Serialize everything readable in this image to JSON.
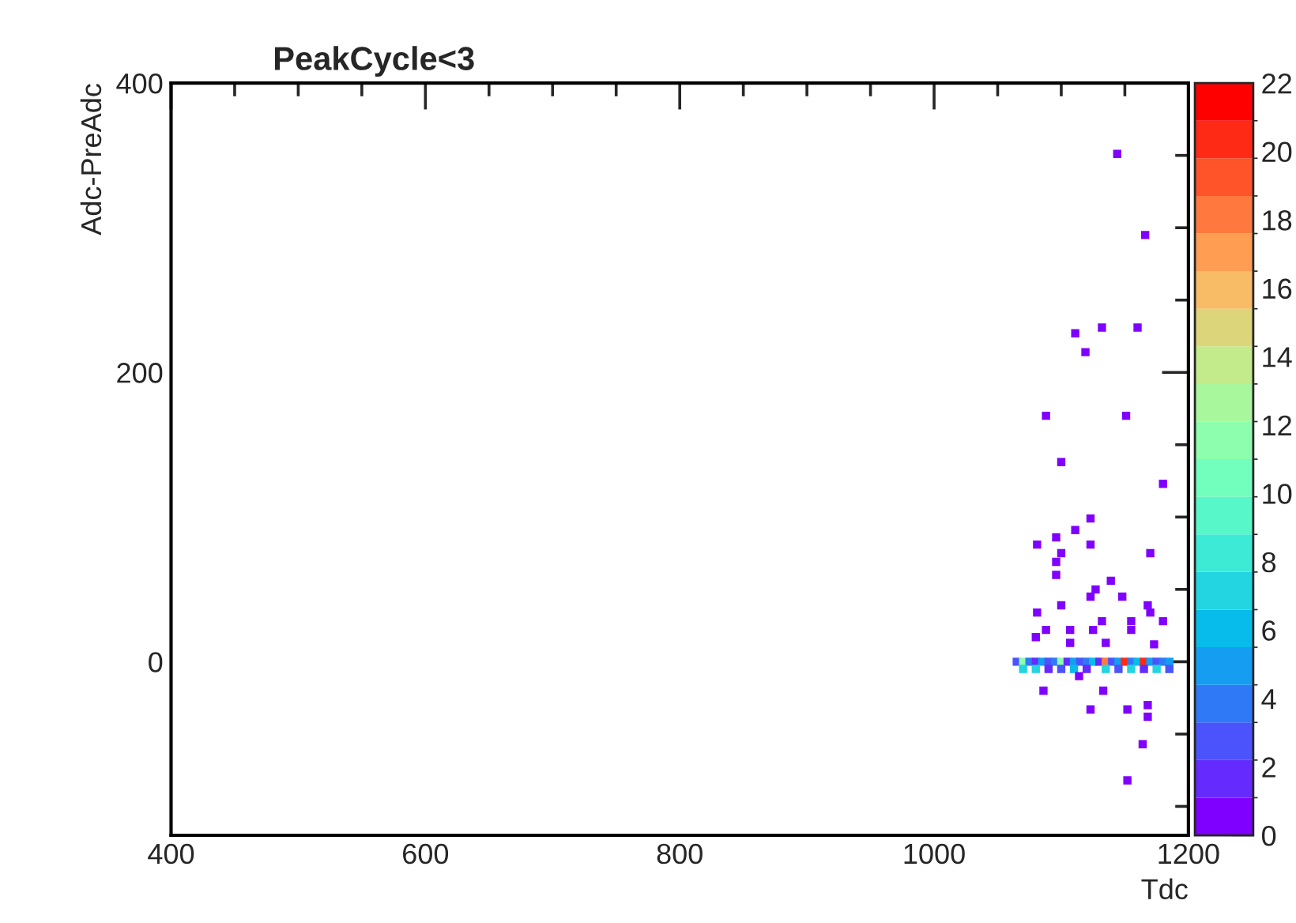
{
  "chart_data": {
    "type": "scatter",
    "title": "PeakCycle<3",
    "xlabel": "Tdc",
    "ylabel": "Adc-PreAdc",
    "xlim": [
      400,
      1200
    ],
    "xticks": [
      400,
      600,
      800,
      1000,
      1200
    ],
    "ylim": [
      -120,
      400
    ],
    "yticks": [
      0,
      200,
      400
    ],
    "clim": [
      0,
      22
    ],
    "cticks": [
      0,
      2,
      4,
      6,
      8,
      10,
      12,
      14,
      16,
      18,
      20,
      22
    ],
    "marker": "square",
    "grid": false,
    "x": [
      1144,
      1166,
      1111,
      1132,
      1160,
      1119,
      1088,
      1151,
      1100,
      1180,
      1123,
      1081,
      1096,
      1111,
      1123,
      1100,
      1096,
      1096,
      1170,
      1139,
      1127,
      1123,
      1148,
      1100,
      1168,
      1081,
      1132,
      1155,
      1170,
      1180,
      1088,
      1107,
      1125,
      1155,
      1080,
      1107,
      1135,
      1173,
      1065,
      1070,
      1075,
      1080,
      1085,
      1090,
      1095,
      1100,
      1105,
      1110,
      1115,
      1120,
      1125,
      1130,
      1135,
      1140,
      1145,
      1150,
      1155,
      1160,
      1165,
      1170,
      1175,
      1180,
      1185,
      1070,
      1080,
      1090,
      1100,
      1110,
      1120,
      1135,
      1145,
      1155,
      1165,
      1175,
      1185,
      1114,
      1086,
      1133,
      1123,
      1152,
      1168,
      1168,
      1164,
      1152
    ],
    "values": [
      351,
      295,
      227,
      231,
      231,
      214,
      170,
      170,
      138,
      123,
      99,
      81,
      86,
      91,
      81,
      75,
      69,
      60,
      75,
      56,
      50,
      45,
      45,
      39,
      39,
      34,
      28,
      28,
      34,
      28,
      22,
      22,
      22,
      22,
      17,
      13,
      13,
      12,
      0,
      0,
      0,
      0,
      0,
      0,
      0,
      0,
      0,
      0,
      0,
      0,
      0,
      0,
      0,
      0,
      0,
      0,
      0,
      0,
      0,
      0,
      0,
      0,
      0,
      -5,
      -5,
      -5,
      -5,
      -5,
      -5,
      -5,
      -5,
      -5,
      -5,
      -5,
      -5,
      -10,
      -20,
      -20,
      -33,
      -33,
      -30,
      -38,
      -57,
      -82
    ],
    "cvalues": [
      1,
      1,
      1,
      1,
      1,
      1,
      1,
      1,
      1,
      1,
      1,
      1,
      1,
      1,
      1,
      1,
      1,
      1,
      1,
      1,
      1,
      1,
      1,
      1,
      1,
      1,
      1,
      1,
      1,
      1,
      1,
      1,
      1,
      1,
      1,
      1,
      1,
      1,
      3,
      12,
      4,
      2,
      5,
      3,
      4,
      12,
      2,
      5,
      3,
      4,
      6,
      2,
      18,
      3,
      5,
      20,
      4,
      6,
      20,
      5,
      3,
      4,
      5,
      7,
      7,
      2,
      3,
      6,
      2,
      7,
      3,
      7,
      2,
      7,
      3,
      1,
      1,
      1,
      1,
      1,
      1,
      1,
      1,
      1
    ]
  }
}
